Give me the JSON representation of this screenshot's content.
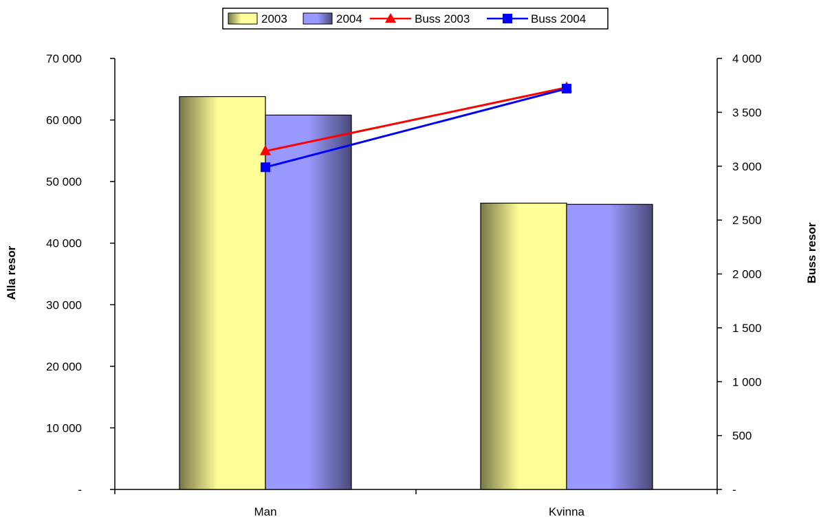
{
  "chart_data": {
    "type": "bar",
    "categories": [
      "Man",
      "Kvinna"
    ],
    "series": [
      {
        "name": "2003",
        "kind": "bar",
        "axis": "left",
        "values": [
          63800,
          46500
        ]
      },
      {
        "name": "2004",
        "kind": "bar",
        "axis": "left",
        "values": [
          60800,
          46300
        ]
      },
      {
        "name": "Buss 2003",
        "kind": "line",
        "axis": "right",
        "marker": "triangle",
        "color": "#ff0000",
        "values": [
          3140,
          3730
        ]
      },
      {
        "name": "Buss 2004",
        "kind": "line",
        "axis": "right",
        "marker": "square",
        "color": "#0000ff",
        "values": [
          2990,
          3720
        ]
      }
    ],
    "ylabel": "Alla resor",
    "y2label": "Buss resor",
    "ylim": [
      0,
      70000
    ],
    "y2lim": [
      0,
      4000
    ],
    "yticks": [
      {
        "value": 0,
        "label": "-"
      },
      {
        "value": 10000,
        "label": "10 000"
      },
      {
        "value": 20000,
        "label": "20 000"
      },
      {
        "value": 30000,
        "label": "30 000"
      },
      {
        "value": 40000,
        "label": "40 000"
      },
      {
        "value": 50000,
        "label": "50 000"
      },
      {
        "value": 60000,
        "label": "60 000"
      },
      {
        "value": 70000,
        "label": "70 000"
      }
    ],
    "y2ticks": [
      {
        "value": 0,
        "label": "-"
      },
      {
        "value": 500,
        "label": "500"
      },
      {
        "value": 1000,
        "label": "1 000"
      },
      {
        "value": 1500,
        "label": "1 500"
      },
      {
        "value": 2000,
        "label": "2 000"
      },
      {
        "value": 2500,
        "label": "2 500"
      },
      {
        "value": 3000,
        "label": "3 000"
      },
      {
        "value": 3500,
        "label": "3 500"
      },
      {
        "value": 4000,
        "label": "4 000"
      }
    ],
    "grid": false,
    "legend_position": "top-center",
    "colors": {
      "bar2003_light": "#ffff99",
      "bar2003_dark": "#77774a",
      "bar2004_light": "#9999ff",
      "bar2004_dark": "#4a4a7a"
    }
  }
}
